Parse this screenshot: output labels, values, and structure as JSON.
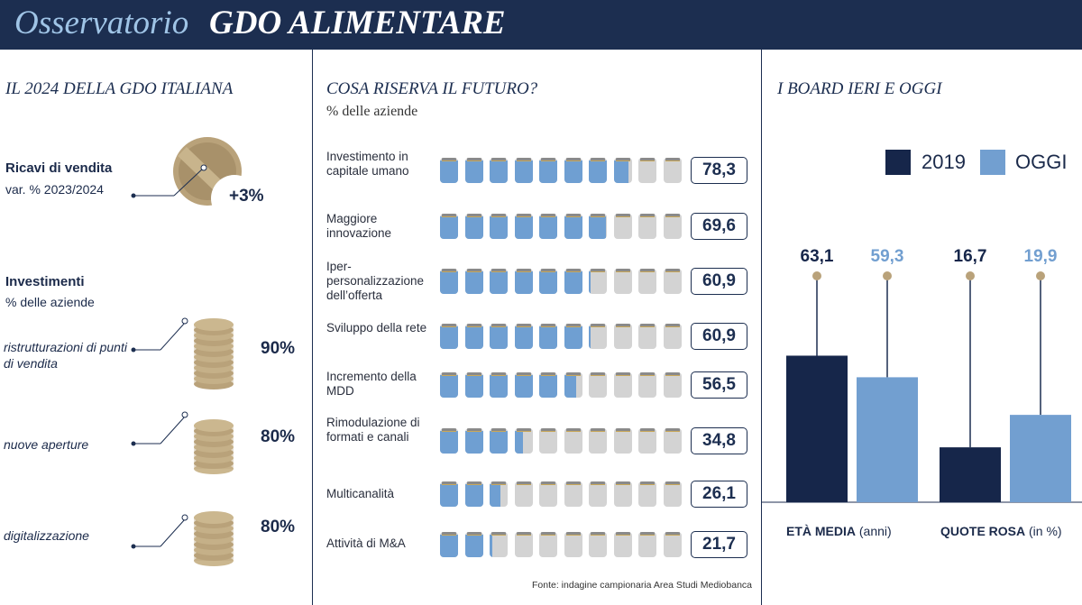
{
  "header": {
    "title_light": "Osservatorio",
    "title_bold": "GDO ALIMENTARE"
  },
  "left": {
    "section_title": "IL 2024 DELLA GDO ITALIANA",
    "revenue": {
      "label": "Ricavi di vendita",
      "sub": "var. % 2023/2024",
      "value": "+3%"
    },
    "investments": {
      "label": "Investimenti",
      "sub": "% delle aziende",
      "items": [
        {
          "label": "ristrutturazioni di punti di vendita",
          "value": "90%"
        },
        {
          "label": "nuove aperture",
          "value": "80%"
        },
        {
          "label": "digitalizzazione",
          "value": "80%"
        }
      ]
    },
    "colors": {
      "gold": "#b9a27a"
    }
  },
  "chart_data": [
    {
      "type": "pictogram-bar",
      "title": "COSA RISERVA IL FUTURO?",
      "subtitle": "% delle aziende",
      "units_per_icon": 10,
      "icons": 10,
      "categories": [
        "Investimento in capitale umano",
        "Maggiore innovazione",
        "Iper-personalizzazione dell’offerta",
        "Sviluppo della rete",
        "Incremento della MDD",
        "Rimodulazione di formati e canali",
        "Multicanalità",
        "Attività di M&A"
      ],
      "labels": [
        "78,3",
        "69,6",
        "60,9",
        "60,9",
        "56,5",
        "34,8",
        "26,1",
        "21,7"
      ],
      "values": [
        78.3,
        69.6,
        60.9,
        60.9,
        56.5,
        34.8,
        26.1,
        21.7
      ],
      "colors": {
        "filled": "#6f9fd2",
        "empty": "#d3d3d3"
      },
      "source": "Fonte: indagine campionaria Area Studi Mediobanca"
    },
    {
      "type": "bar",
      "title": "I BOARD IERI E OGGI",
      "categories": [
        "ETÀ MEDIA",
        "QUOTE ROSA"
      ],
      "category_units": [
        "(anni)",
        "(in %)"
      ],
      "series": [
        {
          "name": "2019",
          "values": [
            63.1,
            16.7
          ],
          "labels": [
            "63,1",
            "16,7"
          ],
          "color": "#16264a"
        },
        {
          "name": "OGGI",
          "values": [
            59.3,
            19.9
          ],
          "labels": [
            "59,3",
            "19,9"
          ],
          "color": "#729fd0"
        }
      ],
      "legend": "top-right",
      "grid": false
    }
  ]
}
